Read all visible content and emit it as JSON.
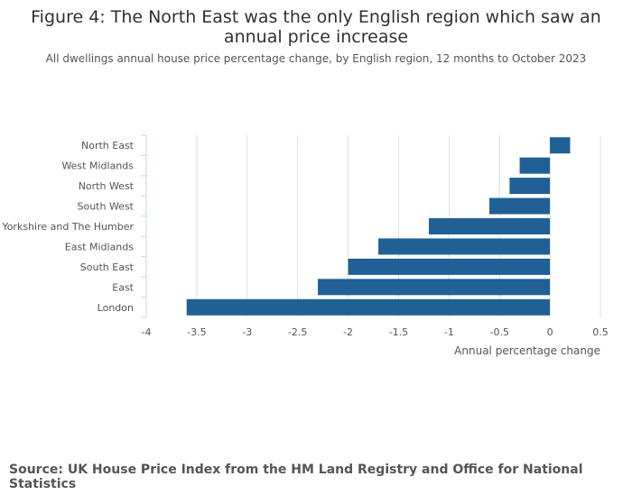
{
  "chart_data": {
    "type": "bar",
    "orientation": "horizontal",
    "title": "Figure 4: The North East was the only English region which saw an annual price increase",
    "subtitle": "All dwellings annual house price percentage change, by English region, 12 months to October 2023",
    "categories": [
      "North East",
      "West Midlands",
      "North West",
      "South West",
      "Yorkshire and The Humber",
      "East Midlands",
      "South East",
      "East",
      "London"
    ],
    "values": [
      0.2,
      -0.3,
      -0.4,
      -0.6,
      -1.2,
      -1.7,
      -2.0,
      -2.3,
      -3.6
    ],
    "xlabel": "Annual percentage change",
    "ylabel": "",
    "xlim": [
      -4,
      0.5
    ],
    "xticks": [
      "-4",
      "-3.5",
      "-3",
      "-2.5",
      "-2",
      "-1.5",
      "-1",
      "-0.5",
      "0",
      "0.5"
    ],
    "grid": true,
    "bar_color": "#206095",
    "source": "Source: UK House Price Index from the HM Land Registry and Office for National Statistics"
  }
}
